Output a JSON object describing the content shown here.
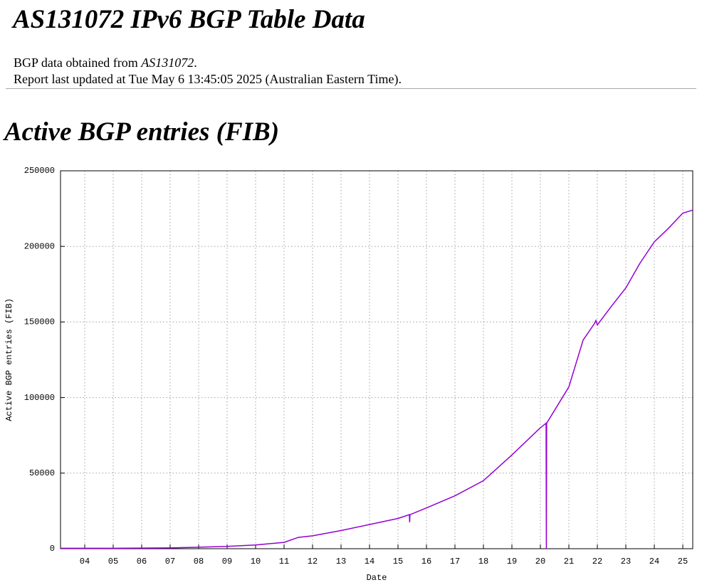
{
  "header": {
    "title": "AS131072 IPv6 BGP Table Data",
    "source_parts": [
      "BGP data obtained from ",
      "AS131072",
      "."
    ],
    "updated": "Report last updated at Tue May 6 13:45:05 2025 (Australian Eastern Time)."
  },
  "section_title": "Active BGP entries (FIB)",
  "chart_data": {
    "type": "line",
    "x_label": "Date",
    "y_label": "Active BGP entries (FIB)",
    "x": [
      2003.15,
      2005,
      2007,
      2008,
      2009,
      2010,
      2011,
      2011.5,
      2012,
      2013,
      2014,
      2015,
      2015.4,
      2015.41,
      2015.42,
      2016,
      2017,
      2018,
      2019,
      2020,
      2020.2,
      2020.21,
      2020.22,
      2021,
      2021.5,
      2021.9,
      2021.95,
      2022,
      2022.5,
      2023,
      2023.5,
      2024,
      2024.5,
      2025,
      2025.35
    ],
    "series": [
      {
        "name": "Active BGP entries",
        "color": "#9400d3",
        "values": [
          300,
          300,
          500,
          1000,
          1500,
          2500,
          4200,
          7500,
          8500,
          12000,
          16000,
          20000,
          22500,
          17500,
          22500,
          27000,
          35000,
          45000,
          62000,
          80000,
          83000,
          0,
          83000,
          107000,
          138000,
          149000,
          151000,
          148000,
          160500,
          172500,
          189000,
          203000,
          212000,
          222000,
          224000
        ]
      }
    ],
    "xlim": [
      2003.15,
      2025.35
    ],
    "xticks": [
      {
        "value": 2004,
        "label": "04"
      },
      {
        "value": 2005,
        "label": "05"
      },
      {
        "value": 2006,
        "label": "06"
      },
      {
        "value": 2007,
        "label": "07"
      },
      {
        "value": 2008,
        "label": "08"
      },
      {
        "value": 2009,
        "label": "09"
      },
      {
        "value": 2010,
        "label": "10"
      },
      {
        "value": 2011,
        "label": "11"
      },
      {
        "value": 2012,
        "label": "12"
      },
      {
        "value": 2013,
        "label": "13"
      },
      {
        "value": 2014,
        "label": "14"
      },
      {
        "value": 2015,
        "label": "15"
      },
      {
        "value": 2016,
        "label": "16"
      },
      {
        "value": 2017,
        "label": "17"
      },
      {
        "value": 2018,
        "label": "18"
      },
      {
        "value": 2019,
        "label": "19"
      },
      {
        "value": 2020,
        "label": "20"
      },
      {
        "value": 2021,
        "label": "21"
      },
      {
        "value": 2022,
        "label": "22"
      },
      {
        "value": 2023,
        "label": "23"
      },
      {
        "value": 2024,
        "label": "24"
      },
      {
        "value": 2025,
        "label": "25"
      }
    ],
    "ylim": [
      0,
      250000
    ],
    "yticks": [
      0,
      50000,
      100000,
      150000,
      200000,
      250000
    ],
    "grid": true
  }
}
